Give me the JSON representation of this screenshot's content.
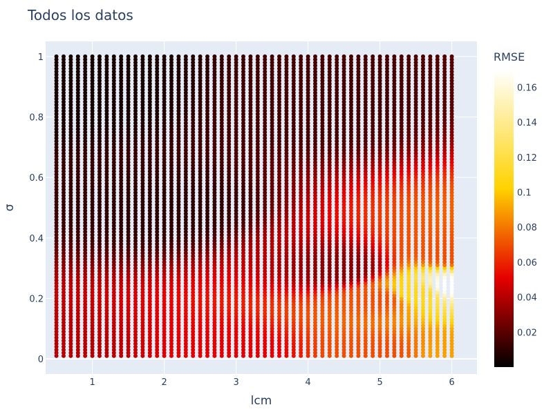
{
  "chart_data": {
    "type": "scatter",
    "title": "Todos los datos",
    "xlabel": "lcm",
    "ylabel": "σ",
    "xlim": [
      0.35,
      6.35
    ],
    "ylim": [
      -0.05,
      1.05
    ],
    "x_ticks": [
      1,
      2,
      3,
      4,
      5,
      6
    ],
    "y_ticks": [
      0,
      0.2,
      0.4,
      0.6,
      0.8,
      1
    ],
    "x_tick_labels": [
      "1",
      "2",
      "3",
      "4",
      "5",
      "6"
    ],
    "y_tick_labels": [
      "0",
      "0.2",
      "0.4",
      "0.6",
      "0.8",
      "1"
    ],
    "grid": true,
    "grid_x": {
      "start": 0.5,
      "stop": 6.0,
      "step": 0.1
    },
    "grid_y": {
      "start": 0.01,
      "stop": 1.0,
      "step": 0.01
    },
    "colorbar": {
      "title": "RMSE",
      "range": [
        0.0,
        0.17
      ],
      "ticks": [
        0.02,
        0.04,
        0.06,
        0.08,
        0.1,
        0.12,
        0.14,
        0.16
      ],
      "tick_labels": [
        "0.02",
        "0.04",
        "0.06",
        "0.08",
        "0.1",
        "0.12",
        "0.14",
        "0.16"
      ],
      "colorscale": [
        [
          0.0,
          "#000000"
        ],
        [
          0.3,
          "#e60000"
        ],
        [
          0.6,
          "#ffd200"
        ],
        [
          1.0,
          "#ffffff"
        ]
      ]
    },
    "rmse_surface_samples": [
      {
        "x": 0.5,
        "y": 0.02,
        "rmse": 0.04
      },
      {
        "x": 3.0,
        "y": 0.02,
        "rmse": 0.05
      },
      {
        "x": 5.0,
        "y": 0.02,
        "rmse": 0.07
      },
      {
        "x": 6.0,
        "y": 0.02,
        "rmse": 0.09
      },
      {
        "x": 5.0,
        "y": 0.2,
        "rmse": 0.07
      },
      {
        "x": 5.5,
        "y": 0.22,
        "rmse": 0.11
      },
      {
        "x": 6.0,
        "y": 0.24,
        "rmse": 0.17
      },
      {
        "x": 6.0,
        "y": 0.35,
        "rmse": 0.07
      },
      {
        "x": 4.5,
        "y": 0.3,
        "rmse": 0.03
      },
      {
        "x": 2.0,
        "y": 0.5,
        "rmse": 0.01
      },
      {
        "x": 1.0,
        "y": 0.9,
        "rmse": 0.005
      },
      {
        "x": 4.0,
        "y": 0.85,
        "rmse": 0.015
      }
    ]
  }
}
